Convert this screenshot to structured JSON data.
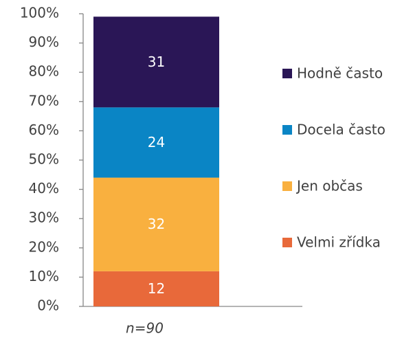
{
  "chart_data": {
    "type": "stacked_bar",
    "categories": [
      "n=90"
    ],
    "series": [
      {
        "name": "Velmi zřídka",
        "color": "#e8693a",
        "values": [
          12
        ]
      },
      {
        "name": "Jen občas",
        "color": "#f9b03f",
        "values": [
          32
        ]
      },
      {
        "name": "Docela často",
        "color": "#0a85c5",
        "values": [
          24
        ]
      },
      {
        "name": "Hodně často",
        "color": "#2a1656",
        "values": [
          31
        ]
      }
    ],
    "ylim": [
      0,
      100
    ],
    "yticks": [
      {
        "value": 0,
        "label": "0%"
      },
      {
        "value": 10,
        "label": "10%"
      },
      {
        "value": 20,
        "label": "20%"
      },
      {
        "value": 30,
        "label": "30%"
      },
      {
        "value": 40,
        "label": "40%"
      },
      {
        "value": 50,
        "label": "50%"
      },
      {
        "value": 60,
        "label": "60%"
      },
      {
        "value": 70,
        "label": "70%"
      },
      {
        "value": 80,
        "label": "80%"
      },
      {
        "value": 90,
        "label": "90%"
      },
      {
        "value": 100,
        "label": "100%"
      }
    ],
    "legend": "right"
  }
}
